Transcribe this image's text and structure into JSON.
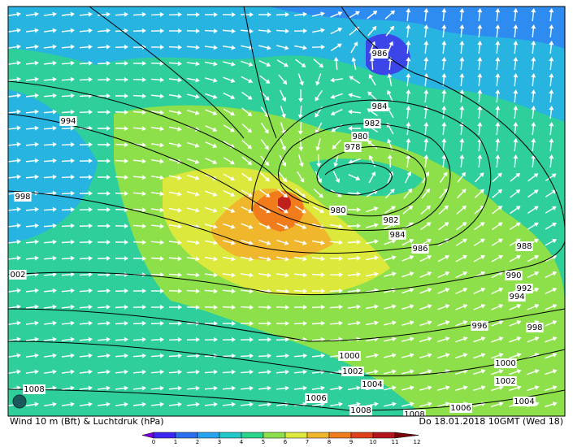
{
  "map": {
    "caption_left": "Wind 10 m (Bft) & Luchtdruk (hPa)",
    "caption_right": "Do 18.01.2018 10GMT (Wed 18)",
    "isobar_labels": [
      "986",
      "984",
      "982",
      "980",
      "978",
      "994",
      "998",
      "980",
      "982",
      "984",
      "986",
      "988",
      "990",
      "992",
      "994",
      "996",
      "998",
      "002",
      "1000",
      "1000",
      "1002",
      "1002",
      "1004",
      "1004",
      "1006",
      "1006",
      "1008",
      "1008",
      "1008"
    ],
    "colorbar": {
      "labels": [
        0,
        1,
        2,
        3,
        4,
        5,
        6,
        7,
        8,
        9,
        10,
        11,
        12
      ],
      "colors": [
        "#7a00e6",
        "#3c28f0",
        "#2c6ef0",
        "#27a4f0",
        "#22c8c8",
        "#2ad48a",
        "#8ee04a",
        "#dce83c",
        "#f0b62c",
        "#f07c1c",
        "#e0401c",
        "#b4141c",
        "#78000c"
      ]
    }
  }
}
